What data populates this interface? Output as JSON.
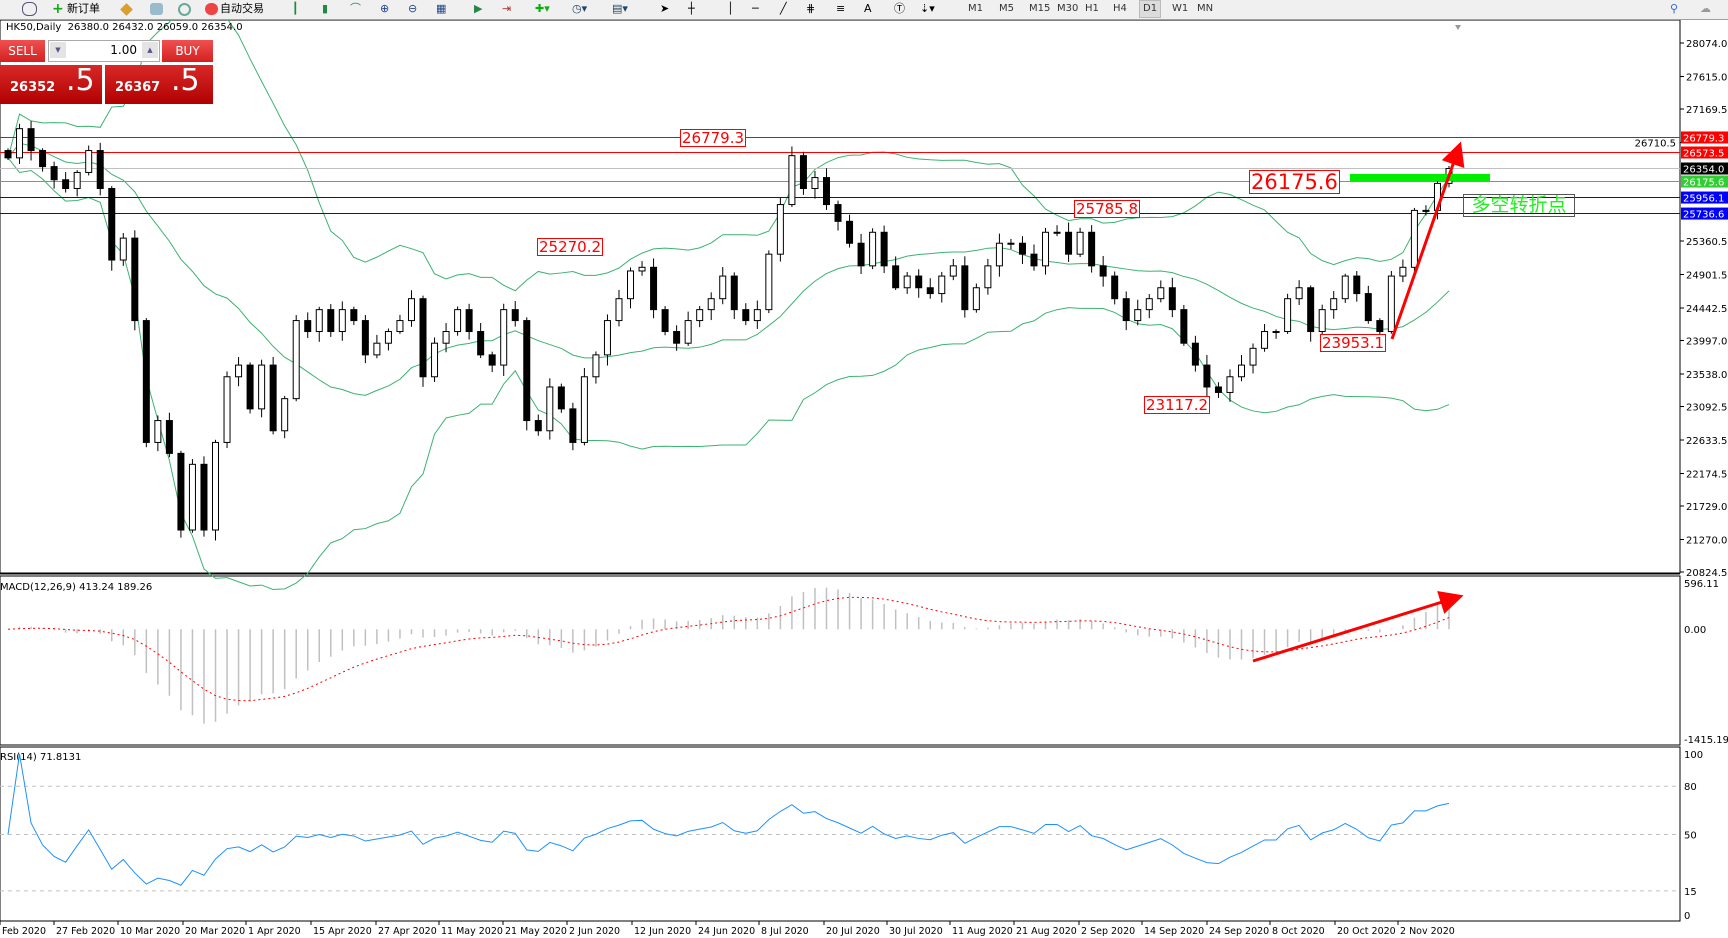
{
  "toolbar": {
    "new_order": "新订单",
    "auto_trading": "自动交易",
    "icons": [
      "profile-icon",
      "new-order-icon",
      "market-watch-icon",
      "navigator-icon",
      "signals-icon",
      "auto-trading-icon",
      "bar-chart-icon",
      "candlestick-icon",
      "line-chart-icon",
      "zoom-in-icon",
      "zoom-out-icon",
      "tile-icon",
      "autoscroll-icon",
      "chart-shift-icon",
      "indicators-icon",
      "periods-icon",
      "templates-icon",
      "cursor-icon",
      "crosshair-icon",
      "vertical-line-icon",
      "horizontal-line-icon",
      "trendline-icon",
      "fibonacci-icon",
      "text-icon",
      "label-icon",
      "arrows-icon"
    ],
    "timeframes": [
      "M1",
      "M5",
      "M15",
      "M30",
      "H1",
      "H4",
      "D1",
      "W1",
      "MN"
    ],
    "active_timeframe": "D1"
  },
  "chart": {
    "header": "HK50,Daily  26380.0 26432.0 26059.0 26354.0"
  },
  "trade_panel": {
    "sell_label": "SELL",
    "buy_label": "BUY",
    "lot": "1.00",
    "sell_price_main": "26352",
    "sell_price_frac": ".5",
    "buy_price_main": "26367",
    "buy_price_frac": ".5"
  },
  "annotations": {
    "labels": [
      "26779.3",
      "25270.2",
      "25785.8",
      "23117.2",
      "23953.1",
      "26175.6"
    ],
    "pivot_text": "多空转折点"
  },
  "colors": {
    "bull_body": "#ffffff",
    "bear_body": "#000000",
    "bands": "#3cb371",
    "macd_hist": "#c0c0c0",
    "macd_signal": "#ff0000",
    "rsi": "#1e90ff",
    "arrow": "#ff0000",
    "pivot_bar": "#00ee00"
  },
  "chart_data": [
    {
      "type": "candlestick",
      "ylim": [
        20824.5,
        28074.0
      ],
      "y_ticks": [
        "28074.0",
        "27615.0",
        "27169.5",
        "26710.5",
        "25360.5",
        "24901.5",
        "24442.5",
        "23997.0",
        "23538.0",
        "23092.5",
        "22633.5",
        "22174.5",
        "21729.0",
        "21270.0",
        "20824.5"
      ],
      "x_ticks": [
        "Feb 2020",
        "27 Feb 2020",
        "10 Mar 2020",
        "20 Mar 2020",
        "1 Apr 2020",
        "15 Apr 2020",
        "27 Apr 2020",
        "11 May 2020",
        "21 May 2020",
        "2 Jun 2020",
        "12 Jun 2020",
        "24 Jun 2020",
        "8 Jul 2020",
        "20 Jul 2020",
        "30 Jul 2020",
        "11 Aug 2020",
        "21 Aug 2020",
        "2 Sep 2020",
        "14 Sep 2020",
        "24 Sep 2020",
        "8 Oct 2020",
        "20 Oct 2020",
        "2 Nov 2020"
      ],
      "closes": [
        26500,
        26900,
        26600,
        26380,
        26200,
        26080,
        26300,
        26600,
        26080,
        25100,
        25400,
        24270,
        22600,
        22900,
        22450,
        21400,
        22300,
        21400,
        22600,
        23500,
        23660,
        23060,
        23660,
        22760,
        23200,
        24270,
        24120,
        24420,
        24120,
        24420,
        24270,
        23800,
        23960,
        24120,
        24270,
        24570,
        23500,
        23960,
        24120,
        24420,
        24120,
        23800,
        23660,
        24420,
        24270,
        22900,
        22760,
        23360,
        23060,
        22600,
        23500,
        23800,
        24270,
        24570,
        24950,
        25000,
        24420,
        24120,
        23960,
        24270,
        24420,
        24570,
        24880,
        24420,
        24270,
        24420,
        25180,
        25860,
        26530,
        26080,
        26230,
        25860,
        25630,
        25330,
        25020,
        25480,
        25020,
        24720,
        24880,
        24720,
        24640,
        24880,
        25020,
        24420,
        24720,
        25020,
        25330,
        25330,
        25180,
        25020,
        25480,
        25480,
        25180,
        25480,
        25020,
        24880,
        24570,
        24270,
        24420,
        24570,
        24720,
        24420,
        23960,
        23660,
        23360,
        23285,
        23500,
        23660,
        23890,
        24120,
        24120,
        24570,
        24720,
        24120,
        24420,
        24570,
        24880,
        24640,
        24270,
        24120,
        24880,
        25000,
        25780,
        25780,
        26150,
        26354
      ],
      "horizontal_lines": [
        {
          "price": 26779.3,
          "label": "26779.3",
          "color": "#ff0000"
        },
        {
          "price": 26573.5,
          "label": "26573.5",
          "color": "#ff0000"
        },
        {
          "price": 26354.0,
          "label": "26354.0",
          "color": "#000000",
          "line_color": "#c0c0c0"
        },
        {
          "price": 26175.6,
          "label": "26175.6",
          "color": "#32cd32"
        },
        {
          "price": 25956.1,
          "label": "25956.1",
          "color": "#0000ff"
        },
        {
          "price": 25736.6,
          "label": "25736.6",
          "color": "#0000ff"
        }
      ],
      "overlay": "bollinger-bands"
    },
    {
      "type": "bar+line",
      "title": "MACD(12,26,9) 413.24 189.26",
      "ylim": [
        -1415.19,
        596.11
      ],
      "y_ticks": [
        "596.11",
        "0.00",
        "-1415.19"
      ]
    },
    {
      "type": "line",
      "title": "RSI(14) 71.8131",
      "ylim": [
        0,
        100
      ],
      "y_ticks": [
        "100",
        "80",
        "50",
        "15",
        "0"
      ],
      "levels": [
        80,
        50,
        15
      ]
    }
  ]
}
